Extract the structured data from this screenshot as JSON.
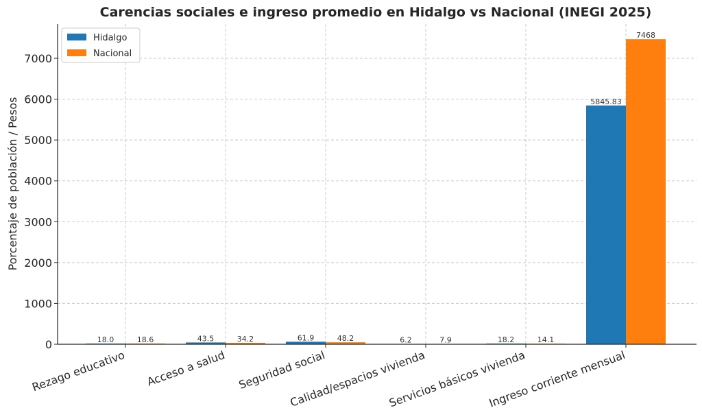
{
  "chart_data": {
    "type": "bar",
    "title": "Carencias sociales e ingreso promedio en Hidalgo vs Nacional (INEGI 2025)",
    "xlabel": "",
    "ylabel": "Porcentaje de población / Pesos",
    "categories": [
      "Rezago educativo",
      "Acceso a salud",
      "Seguridad social",
      "Calidad/espacios vivienda",
      "Servicios básicos vivienda",
      "Ingreso corriente mensual"
    ],
    "series": [
      {
        "name": "Hidalgo",
        "color": "#1f77b4",
        "values": [
          18.0,
          43.5,
          61.9,
          6.2,
          18.2,
          5845.83
        ],
        "labels": [
          "18.0",
          "43.5",
          "61.9",
          "6.2",
          "18.2",
          "5845.83"
        ]
      },
      {
        "name": "Nacional",
        "color": "#ff7f0e",
        "values": [
          18.6,
          34.2,
          48.2,
          7.9,
          14.1,
          7468
        ],
        "labels": [
          "18.6",
          "34.2",
          "48.2",
          "7.9",
          "14.1",
          "7468"
        ]
      }
    ],
    "yticks": [
      0,
      1000,
      2000,
      3000,
      4000,
      5000,
      6000,
      7000
    ],
    "ylim": [
      0,
      7840
    ],
    "grid": true,
    "legend_position": "top-left"
  }
}
